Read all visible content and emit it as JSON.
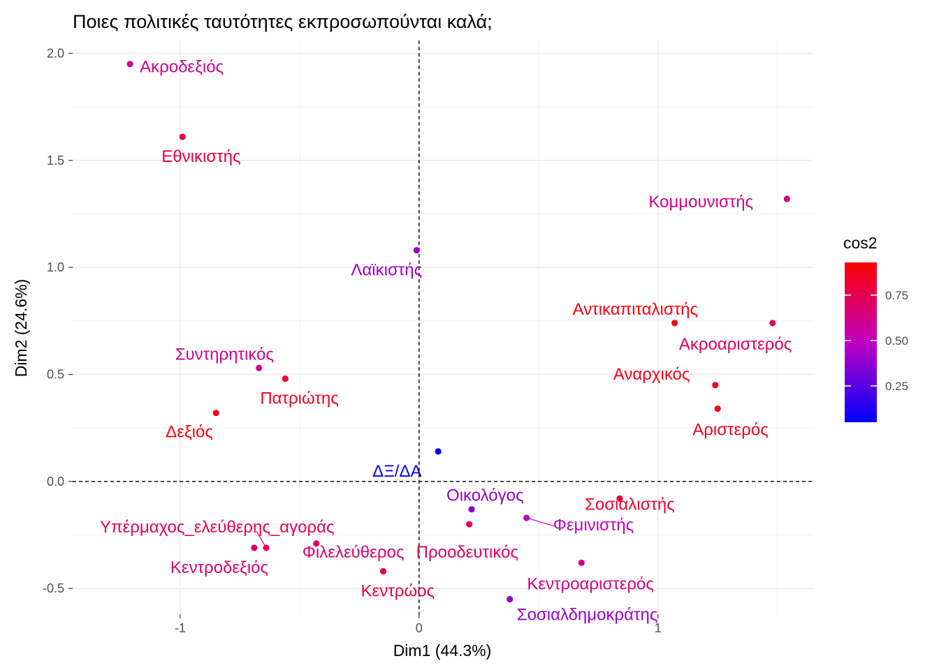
{
  "chart_data": {
    "type": "scatter",
    "title": "Ποιες πολιτικές ταυτότητες εκπροσωπούνται καλά;",
    "xlabel": "Dim1 (44.3%)",
    "ylabel": "Dim2 (24.6%)",
    "xlim": [
      -1.45,
      1.65
    ],
    "ylim": [
      -0.62,
      2.06
    ],
    "xticks": [
      -1,
      0,
      1
    ],
    "yticks": [
      -0.5,
      0.0,
      0.5,
      1.0,
      1.5,
      2.0
    ],
    "xtick_labels": [
      "-1",
      "0",
      "1"
    ],
    "ytick_labels": [
      "-0.5",
      "0.0",
      "0.5",
      "1.0",
      "1.5",
      "2.0"
    ],
    "grid": true,
    "reference_lines": {
      "x": 0,
      "y": 0,
      "style": "dashed"
    },
    "legend": {
      "title": "cos2",
      "placement": "right",
      "ticks": [
        0.25,
        0.5,
        0.75
      ],
      "tick_labels": [
        "0.25",
        "0.50",
        "0.75"
      ],
      "range": [
        0.05,
        0.93
      ],
      "low_color": "#0000FF",
      "high_color": "#FF0000"
    },
    "points": [
      {
        "label": "Ακροδεξιός",
        "x": -1.21,
        "y": 1.95,
        "cos2": 0.6
      },
      {
        "label": "Εθνικιστής",
        "x": -0.99,
        "y": 1.61,
        "cos2": 0.78
      },
      {
        "label": "Κομμουνιστής",
        "x": 1.54,
        "y": 1.32,
        "cos2": 0.62
      },
      {
        "label": "Λαϊκιστής",
        "x": -0.01,
        "y": 1.08,
        "cos2": 0.42
      },
      {
        "label": "Αντικαπιταλιστής",
        "x": 1.07,
        "y": 0.74,
        "cos2": 0.9
      },
      {
        "label": "Ακροαριστερός",
        "x": 1.48,
        "y": 0.74,
        "cos2": 0.72
      },
      {
        "label": "Συντηρητικός",
        "x": -0.67,
        "y": 0.53,
        "cos2": 0.58
      },
      {
        "label": "Πατριώτης",
        "x": -0.56,
        "y": 0.48,
        "cos2": 0.84
      },
      {
        "label": "Αναρχικός",
        "x": 1.24,
        "y": 0.45,
        "cos2": 0.88
      },
      {
        "label": "Αριστερός",
        "x": 1.25,
        "y": 0.34,
        "cos2": 0.86
      },
      {
        "label": "Δεξιός",
        "x": -0.85,
        "y": 0.32,
        "cos2": 0.92
      },
      {
        "label": "ΔΞ/ΔΑ",
        "x": 0.08,
        "y": 0.14,
        "cos2": 0.05
      },
      {
        "label": "Σοσιαλιστής",
        "x": 0.84,
        "y": -0.08,
        "cos2": 0.82
      },
      {
        "label": "Οικολόγος",
        "x": 0.22,
        "y": -0.13,
        "cos2": 0.38
      },
      {
        "label": "Φεμινιστής",
        "x": 0.45,
        "y": -0.17,
        "cos2": 0.5
      },
      {
        "label": "Προοδευτικός",
        "x": 0.21,
        "y": -0.2,
        "cos2": 0.72
      },
      {
        "label": "Υπέρμαχος_ελεύθερης_αγοράς",
        "x": -0.64,
        "y": -0.31,
        "cos2": 0.75
      },
      {
        "label": "Κεντροδεξιός",
        "x": -0.69,
        "y": -0.31,
        "cos2": 0.68
      },
      {
        "label": "Φιλελεύθερος",
        "x": -0.43,
        "y": -0.29,
        "cos2": 0.68
      },
      {
        "label": "Κεντροαριστερός",
        "x": 0.68,
        "y": -0.38,
        "cos2": 0.62
      },
      {
        "label": "Κεντρώος",
        "x": -0.15,
        "y": -0.42,
        "cos2": 0.8
      },
      {
        "label": "Σοσιαλδημοκράτης",
        "x": 0.38,
        "y": -0.55,
        "cos2": 0.4
      }
    ]
  }
}
